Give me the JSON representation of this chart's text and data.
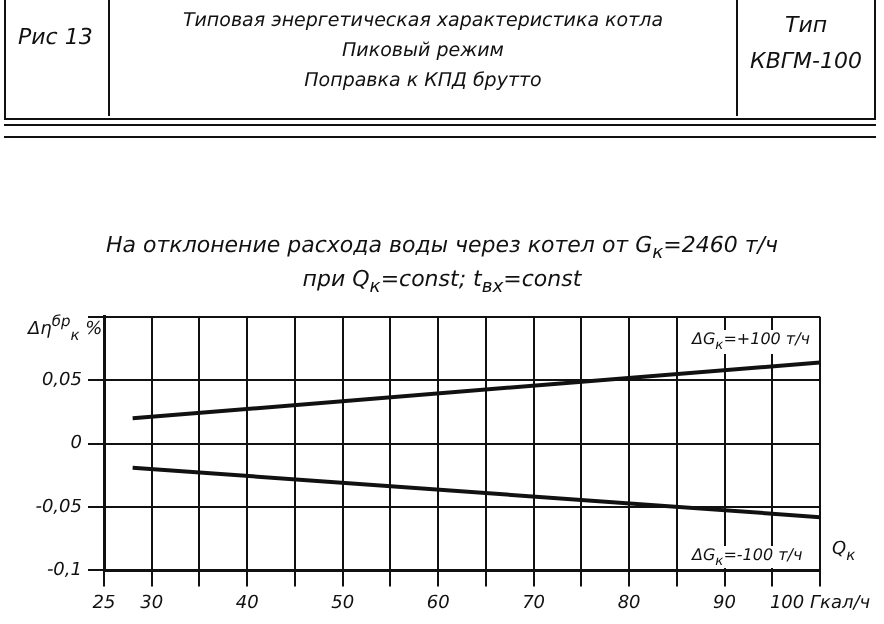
{
  "chart_data": {
    "type": "line",
    "title": "Типовая энергетическая характеристика котла",
    "annotations": [
      "Рис 13",
      "Пиковый режим",
      "Поправка к КПД брутто",
      "Тип",
      "КВГМ-100",
      "На отклонение расхода воды через котел от G$_{к}$=2460 т/ч",
      "при Q$_{к}$=const; t$_{вх}$=const"
    ],
    "xlabel": "Q$_{к}$",
    "ylabel": "Δη$^{бр}$$_{к}$ %",
    "x": [
      28,
      100
    ],
    "series": [
      {
        "name": "ΔG$_{к}$=+100 т/ч",
        "color": "#111111",
        "values": [
          0.02,
          0.064
        ]
      },
      {
        "name": "ΔG$_{к}$=-100 т/ч",
        "color": "#111111",
        "values": [
          -0.019,
          -0.058
        ]
      }
    ],
    "xlim": [
      25,
      100
    ],
    "xticks": [
      25,
      30,
      {
        "value": 35,
        "label": null
      },
      40,
      {
        "value": 45,
        "label": null
      },
      50,
      {
        "value": 55,
        "label": null
      },
      60,
      {
        "value": 65,
        "label": null
      },
      70,
      {
        "value": 75,
        "label": null
      },
      80,
      {
        "value": 85,
        "label": null
      },
      90,
      {
        "value": 95,
        "label": null
      },
      {
        "value": 100,
        "label": "100 Гкал/ч"
      }
    ],
    "ylim": [
      -0.1,
      0.1
    ],
    "yticks": [
      {
        "value": -0.1,
        "label": "-0,1"
      },
      {
        "value": -0.05,
        "label": "-0,05"
      },
      {
        "value": 0,
        "label": "0"
      },
      {
        "value": 0.05,
        "label": "0,05"
      },
      {
        "value": 0.1,
        "label": null
      }
    ],
    "grid": true,
    "legend": false,
    "marker": "none",
    "line_style": "solid"
  }
}
